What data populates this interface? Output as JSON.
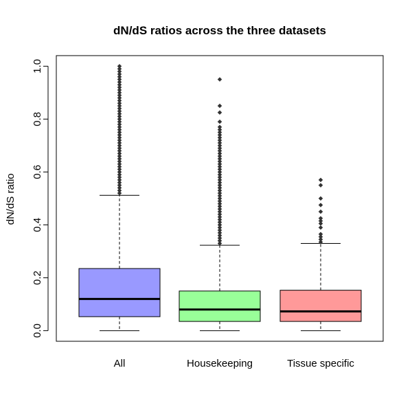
{
  "chart_data": {
    "type": "boxplot",
    "title": "dN/dS ratios across the three datasets",
    "xlabel": "",
    "ylabel": "dN/dS ratio",
    "ylim": [
      -0.04,
      1.04
    ],
    "yticks": [
      "0.0",
      "0.2",
      "0.4",
      "0.6",
      "0.8",
      "1.0"
    ],
    "grid": false,
    "legend": "none",
    "categories": [
      "All",
      "Housekeeping",
      "Tissue specific"
    ],
    "series": [
      {
        "category": "All",
        "color": "#9999ff",
        "whisker_low": 0.0,
        "q1": 0.053,
        "median": 0.12,
        "q3": 0.235,
        "whisker_high": 0.512,
        "outliers": [
          0.52,
          0.53,
          0.54,
          0.55,
          0.56,
          0.57,
          0.58,
          0.59,
          0.6,
          0.61,
          0.62,
          0.63,
          0.64,
          0.65,
          0.66,
          0.67,
          0.68,
          0.69,
          0.7,
          0.71,
          0.72,
          0.73,
          0.74,
          0.75,
          0.76,
          0.77,
          0.78,
          0.79,
          0.8,
          0.81,
          0.82,
          0.83,
          0.84,
          0.85,
          0.86,
          0.87,
          0.88,
          0.89,
          0.9,
          0.91,
          0.92,
          0.93,
          0.94,
          0.95,
          0.96,
          0.97,
          0.98,
          0.99,
          1.0
        ]
      },
      {
        "category": "Housekeeping",
        "color": "#99ff99",
        "whisker_low": 0.0,
        "q1": 0.035,
        "median": 0.08,
        "q3": 0.15,
        "whisker_high": 0.323,
        "outliers": [
          0.33,
          0.34,
          0.35,
          0.36,
          0.37,
          0.38,
          0.39,
          0.4,
          0.41,
          0.42,
          0.43,
          0.44,
          0.45,
          0.46,
          0.47,
          0.48,
          0.49,
          0.5,
          0.51,
          0.52,
          0.53,
          0.54,
          0.55,
          0.56,
          0.57,
          0.58,
          0.59,
          0.6,
          0.61,
          0.62,
          0.63,
          0.64,
          0.65,
          0.66,
          0.67,
          0.68,
          0.69,
          0.7,
          0.71,
          0.72,
          0.73,
          0.74,
          0.75,
          0.76,
          0.77,
          0.79,
          0.825,
          0.85,
          0.95
        ]
      },
      {
        "category": "Tissue specific",
        "color": "#ff9999",
        "whisker_low": 0.0,
        "q1": 0.035,
        "median": 0.073,
        "q3": 0.153,
        "whisker_high": 0.33,
        "outliers": [
          0.335,
          0.345,
          0.355,
          0.365,
          0.39,
          0.405,
          0.415,
          0.425,
          0.45,
          0.475,
          0.5,
          0.55,
          0.57
        ]
      }
    ]
  }
}
